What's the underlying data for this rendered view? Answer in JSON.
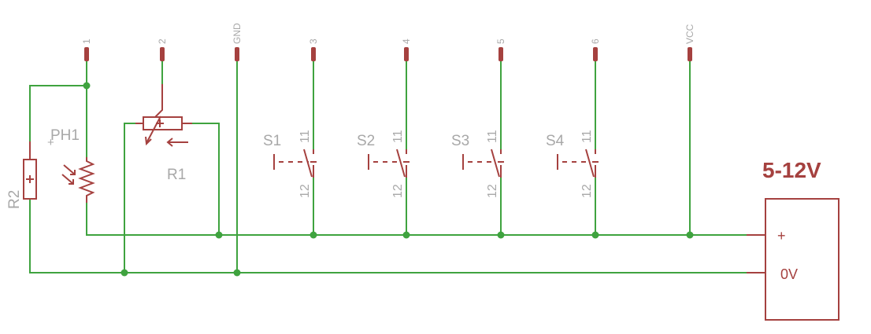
{
  "connectors": [
    {
      "label": "1"
    },
    {
      "label": "2"
    },
    {
      "label": "GND"
    },
    {
      "label": "3"
    },
    {
      "label": "4"
    },
    {
      "label": "5"
    },
    {
      "label": "6"
    },
    {
      "label": "VCC"
    }
  ],
  "components": {
    "r2": {
      "name": "R2"
    },
    "ph1": {
      "name": "PH1",
      "mark": "+"
    },
    "r1": {
      "name": "R1"
    },
    "switches": [
      {
        "name": "S1",
        "pin_top": "11",
        "pin_bottom": "12"
      },
      {
        "name": "S2",
        "pin_top": "11",
        "pin_bottom": "12"
      },
      {
        "name": "S3",
        "pin_top": "11",
        "pin_bottom": "12"
      },
      {
        "name": "S4",
        "pin_top": "11",
        "pin_bottom": "12"
      }
    ],
    "supply": {
      "title": "5-12V",
      "plus": "+",
      "zero": "0V"
    }
  },
  "colors": {
    "wire": "#3fa33f",
    "symbol": "#a5413f",
    "label": "#a8a8a8"
  }
}
